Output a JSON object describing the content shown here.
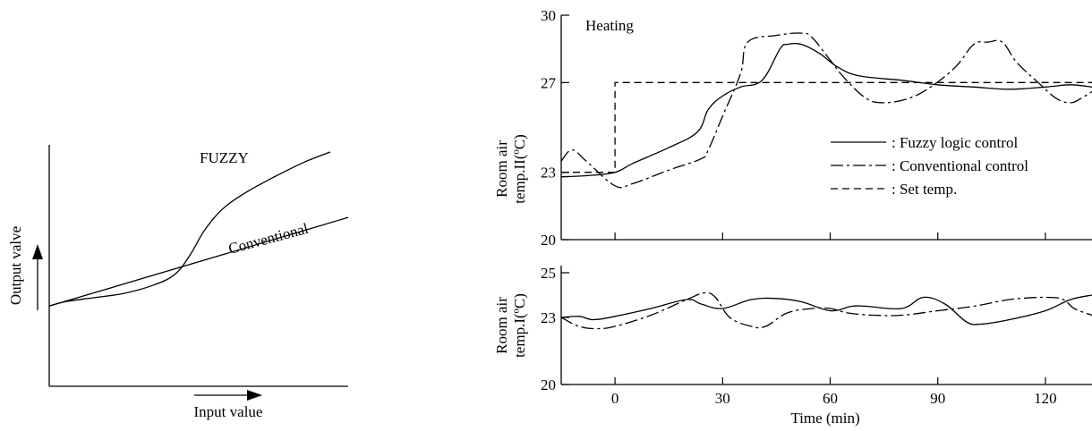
{
  "chart_data": [
    {
      "type": "line",
      "xlabel": "Input value",
      "ylabel": "Output valve",
      "series": [
        {
          "name": "FUZZY",
          "x": [
            0,
            0.05,
            0.15,
            0.25,
            0.35,
            0.42,
            0.47,
            0.52,
            0.58,
            0.66,
            0.75,
            0.85,
            0.94
          ],
          "y": [
            0.38,
            0.4,
            0.42,
            0.44,
            0.48,
            0.53,
            0.62,
            0.74,
            0.84,
            0.92,
            0.99,
            1.06,
            1.11
          ]
        },
        {
          "name": "Conventional",
          "x": [
            0,
            1.0
          ],
          "y": [
            0.38,
            0.8
          ]
        }
      ],
      "legend": "inline labels"
    },
    {
      "type": "line",
      "title": "Heating",
      "xlabel": "Time (min)",
      "ylabel": "Room air temp.II(ºC)",
      "yticks": [
        "30",
        "27",
        "23",
        "20"
      ],
      "ylim": [
        20,
        30
      ],
      "xlim": [
        -15,
        133
      ],
      "series": [
        {
          "name": ": Fuzzy logic control",
          "style": "solid",
          "x": [
            -15,
            -8,
            0,
            5,
            15,
            23,
            26,
            30,
            35,
            41,
            46,
            48,
            52,
            57,
            62,
            68,
            80,
            90,
            100,
            110,
            120,
            127,
            133
          ],
          "y": [
            22.8,
            22.85,
            23,
            23.4,
            24.1,
            24.8,
            25.8,
            26.4,
            26.8,
            27.1,
            28.5,
            28.7,
            28.7,
            28.3,
            27.7,
            27.3,
            27.1,
            26.9,
            26.8,
            26.7,
            26.8,
            26.9,
            26.8
          ]
        },
        {
          "name": ": Conventional control",
          "style": "dashdot",
          "x": [
            -15,
            -12,
            -8,
            0,
            5,
            15,
            24,
            26,
            30,
            35,
            37,
            45,
            52,
            55,
            60,
            64,
            70,
            75,
            82,
            88,
            95,
            100,
            104,
            108,
            112,
            118,
            123,
            127,
            130,
            133
          ],
          "y": [
            23.5,
            24,
            23.5,
            22.4,
            22.5,
            23.1,
            23.6,
            24,
            25.5,
            27.4,
            28.8,
            29.1,
            29.2,
            29,
            28,
            27.2,
            26.3,
            26.1,
            26.3,
            26.8,
            27.7,
            28.7,
            28.8,
            28.8,
            27.9,
            27,
            26.3,
            26.1,
            26.3,
            26.6
          ]
        },
        {
          "name": ": Set temp.",
          "style": "dashed",
          "x": [
            -15,
            0,
            0,
            133
          ],
          "y": [
            23,
            23,
            27,
            27
          ]
        }
      ]
    },
    {
      "type": "line",
      "xlabel": "Time (min)",
      "ylabel": "Room air temp.I(ºC)",
      "yticks": [
        "25",
        "23",
        "20"
      ],
      "xticks": [
        "0",
        "30",
        "60",
        "90",
        "120"
      ],
      "ylim": [
        20,
        25
      ],
      "xlim": [
        -15,
        133
      ],
      "series": [
        {
          "name": "Fuzzy logic control",
          "style": "solid",
          "x": [
            -15,
            -10,
            -6,
            0,
            10,
            20,
            24,
            30,
            38,
            45,
            52,
            60,
            66,
            70,
            80,
            86,
            92,
            98,
            102,
            110,
            120,
            127,
            133
          ],
          "y": [
            23,
            23.05,
            22.9,
            23.05,
            23.4,
            23.8,
            23.6,
            23.4,
            23.8,
            23.85,
            23.7,
            23.3,
            23.5,
            23.5,
            23.4,
            23.9,
            23.6,
            22.8,
            22.7,
            22.9,
            23.3,
            23.8,
            24.0
          ]
        },
        {
          "name": "Conventional control",
          "style": "dashdot",
          "x": [
            -15,
            -10,
            -5,
            0,
            10,
            20,
            25,
            28,
            32,
            38,
            42,
            48,
            55,
            60,
            65,
            72,
            80,
            90,
            100,
            110,
            120,
            125,
            128,
            133
          ],
          "y": [
            23,
            22.6,
            22.5,
            22.6,
            23.1,
            23.8,
            24.1,
            23.9,
            23.0,
            22.6,
            22.6,
            23.2,
            23.4,
            23.4,
            23.2,
            23.1,
            23.1,
            23.3,
            23.5,
            23.8,
            23.9,
            23.8,
            23.4,
            23.1
          ]
        }
      ]
    }
  ]
}
